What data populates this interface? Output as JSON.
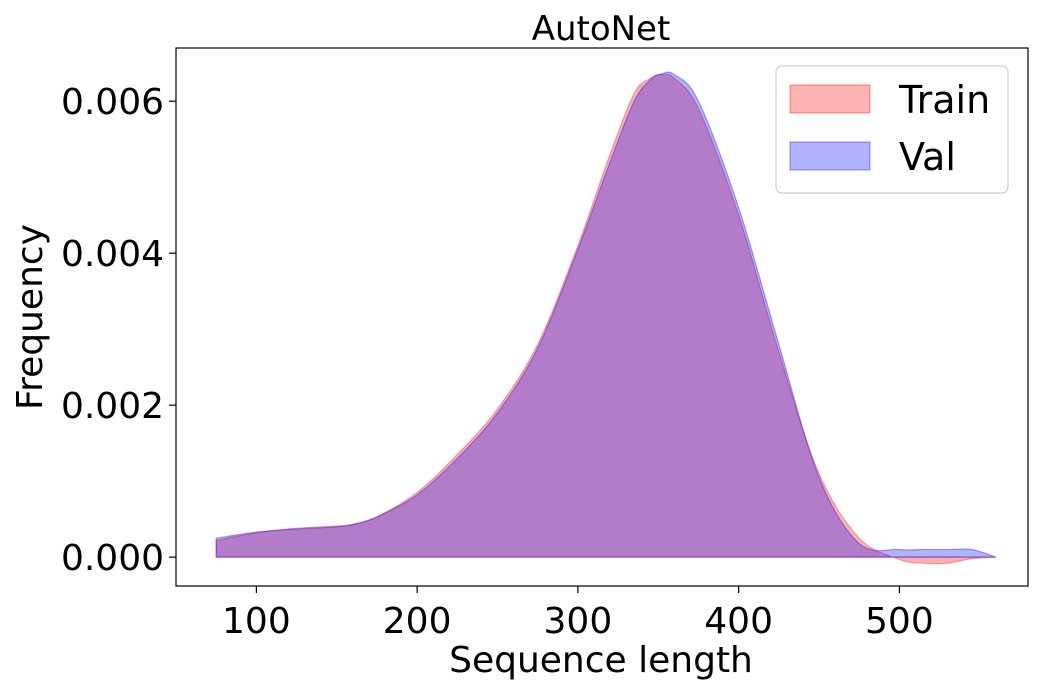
{
  "chart_data": {
    "type": "area",
    "title": "AutoNet",
    "xlabel": "Sequence length",
    "ylabel": "Frequency",
    "xlim": [
      50,
      580
    ],
    "ylim": [
      -0.00038,
      0.0067
    ],
    "xticks": [
      100,
      200,
      300,
      400,
      500
    ],
    "xtick_labels": [
      "100",
      "200",
      "300",
      "400",
      "500"
    ],
    "yticks": [
      0.0,
      0.002,
      0.004,
      0.006
    ],
    "ytick_labels": [
      "0.000",
      "0.002",
      "0.004",
      "0.006"
    ],
    "grid": false,
    "legend_position": "top-right",
    "series": [
      {
        "name": "Train",
        "fill_color": "#ff0000",
        "fill_opacity": 0.3,
        "x": [
          75,
          100,
          125,
          150,
          160,
          175,
          200,
          225,
          250,
          275,
          300,
          320,
          335,
          345,
          352,
          360,
          375,
          400,
          425,
          450,
          475,
          500,
          515,
          530,
          545,
          560
        ],
        "y": [
          0.00022,
          0.00032,
          0.00038,
          0.00041,
          0.00043,
          0.00053,
          0.00085,
          0.00135,
          0.00195,
          0.0028,
          0.0041,
          0.0053,
          0.0061,
          0.0063,
          0.00635,
          0.0063,
          0.0059,
          0.0045,
          0.0027,
          0.0011,
          0.00025,
          -3e-05,
          -8e-05,
          -8e-05,
          -2e-05,
          0.0
        ]
      },
      {
        "name": "Val",
        "fill_color": "#0000ff",
        "fill_opacity": 0.3,
        "x": [
          75,
          100,
          125,
          150,
          160,
          175,
          200,
          225,
          250,
          275,
          300,
          320,
          335,
          345,
          352,
          360,
          375,
          400,
          425,
          450,
          475,
          500,
          515,
          530,
          545,
          560
        ],
        "y": [
          0.00025,
          0.00033,
          0.00037,
          0.0004,
          0.00043,
          0.00053,
          0.00082,
          0.0013,
          0.0019,
          0.00275,
          0.00405,
          0.0052,
          0.006,
          0.00628,
          0.00636,
          0.00635,
          0.006,
          0.0046,
          0.0028,
          0.00105,
          0.00018,
          0.0001,
          0.0001,
          0.0001,
          0.0001,
          0.0
        ]
      }
    ]
  }
}
